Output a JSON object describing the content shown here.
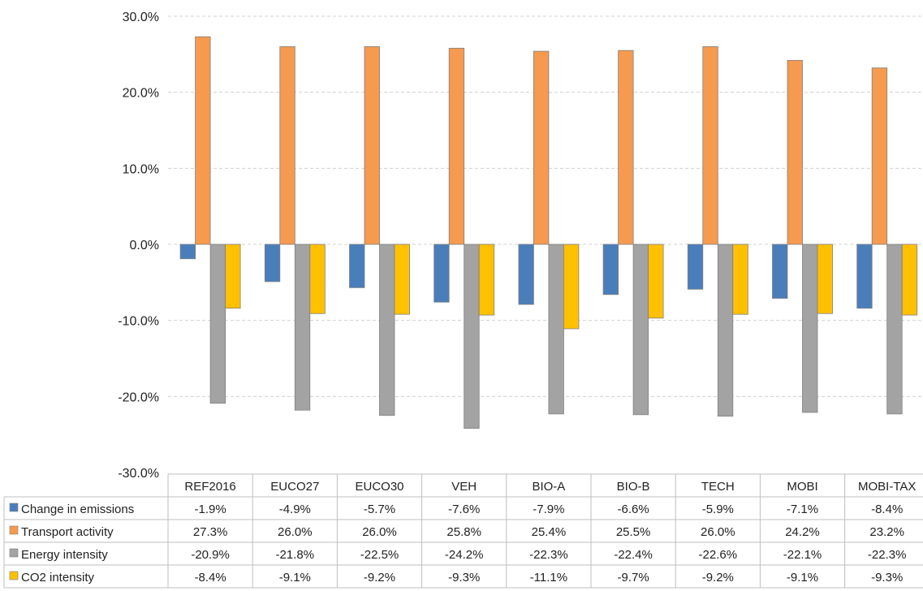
{
  "chart_data": {
    "type": "bar",
    "title": "",
    "xlabel": "",
    "ylabel": "",
    "ylim": [
      -30,
      30
    ],
    "yticks": [
      "30.0%",
      "20.0%",
      "10.0%",
      "0.0%",
      "-10.0%",
      "-20.0%",
      "-30.0%"
    ],
    "grid": true,
    "legend": "data-table-left",
    "categories": [
      "REF2016",
      "EUCO27",
      "EUCO30",
      "VEH",
      "BIO-A",
      "BIO-B",
      "TECH",
      "MOBI",
      "MOBI-TAX"
    ],
    "series": [
      {
        "name": "Change in emissions",
        "color": "#4a7ebb",
        "values": [
          -1.9,
          -4.9,
          -5.7,
          -7.6,
          -7.9,
          -6.6,
          -5.9,
          -7.1,
          -8.4
        ],
        "labels": [
          "-1.9%",
          "-4.9%",
          "-5.7%",
          "-7.6%",
          "-7.9%",
          "-6.6%",
          "-5.9%",
          "-7.1%",
          "-8.4%"
        ]
      },
      {
        "name": "Transport activity",
        "color": "#f59a4f",
        "values": [
          27.3,
          26.0,
          26.0,
          25.8,
          25.4,
          25.5,
          26.0,
          24.2,
          23.2
        ],
        "labels": [
          "27.3%",
          "26.0%",
          "26.0%",
          "25.8%",
          "25.4%",
          "25.5%",
          "26.0%",
          "24.2%",
          "23.2%"
        ]
      },
      {
        "name": "Energy intensity",
        "color": "#a3a3a3",
        "values": [
          -20.9,
          -21.8,
          -22.5,
          -24.2,
          -22.3,
          -22.4,
          -22.6,
          -22.1,
          -22.3
        ],
        "labels": [
          "-20.9%",
          "-21.8%",
          "-22.5%",
          "-24.2%",
          "-22.3%",
          "-22.4%",
          "-22.6%",
          "-22.1%",
          "-22.3%"
        ]
      },
      {
        "name": "CO2 intensity",
        "color": "#ffc000",
        "values": [
          -8.4,
          -9.1,
          -9.2,
          -9.3,
          -11.1,
          -9.7,
          -9.2,
          -9.1,
          -9.3
        ],
        "labels": [
          "-8.4%",
          "-9.1%",
          "-9.2%",
          "-9.3%",
          "-11.1%",
          "-9.7%",
          "-9.2%",
          "-9.1%",
          "-9.3%"
        ]
      }
    ]
  }
}
